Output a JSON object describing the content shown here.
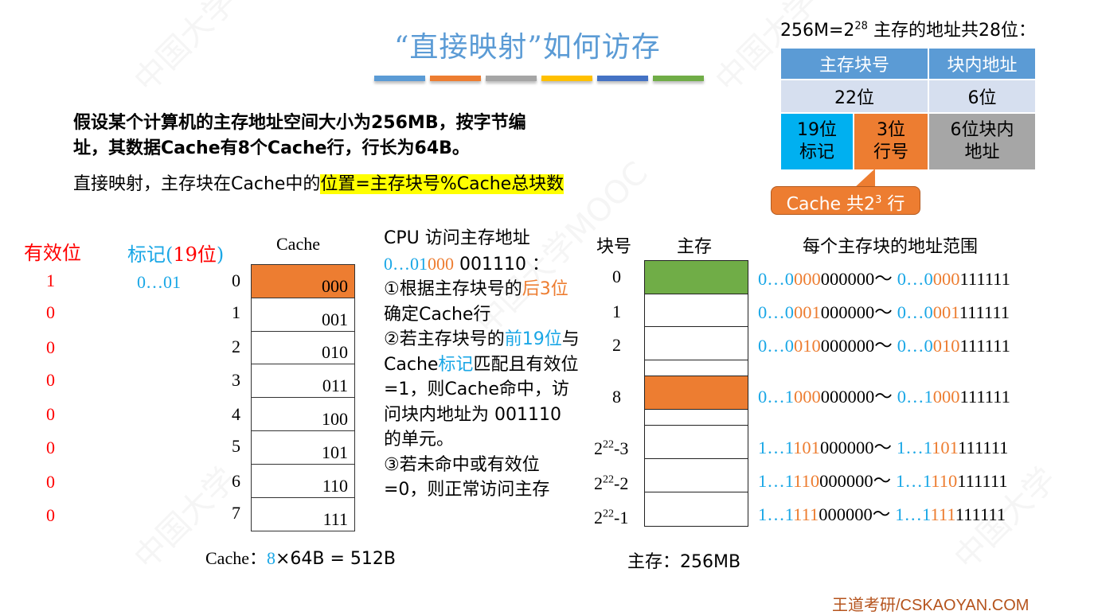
{
  "title": "“直接映射”如何访存",
  "title_bars": [
    "#5b9bd5",
    "#ed7d31",
    "#a5a5a5",
    "#ffc000",
    "#4472c4",
    "#70ad47"
  ],
  "intro": {
    "line1_pre": "假设某个计算机的主存地址空间大小为256MB，按",
    "line1_bold": "字节",
    "line1_post": "编",
    "line2": "址，其数据Cache有8个Cache行，行长为64B。"
  },
  "rule": {
    "prefix": "直接映射，主存块在Cache中的",
    "highlight": "位置=主存块号%Cache总块数"
  },
  "address": {
    "caption_pre": "256M=2",
    "caption_exp": "28",
    "caption_post": " 主存的地址共28位：",
    "header": [
      "主存块号",
      "块内地址"
    ],
    "bits": [
      "22位",
      "6位"
    ],
    "tag": [
      "19位",
      "标记"
    ],
    "row": [
      "3位",
      "行号"
    ],
    "offset": [
      "6位块内",
      "地址"
    ],
    "callout_pre": "Cache 共2",
    "callout_exp": "3",
    "callout_post": " 行"
  },
  "cache": {
    "valid_header": "有效位",
    "tag_header_a": "标记(",
    "tag_header_b": "19位",
    "tag_header_c": ")",
    "header": "Cache",
    "valid_bits": [
      "1",
      "0",
      "0",
      "0",
      "0",
      "0",
      "0",
      "0"
    ],
    "tag_values": [
      "0…01"
    ],
    "indices": [
      "0",
      "1",
      "2",
      "3",
      "4",
      "5",
      "6",
      "7"
    ],
    "lines": [
      "000",
      "001",
      "010",
      "011",
      "100",
      "101",
      "110",
      "111"
    ],
    "size_label": "Cache：",
    "size_count": "8",
    "size_rest": "×64B = 512B",
    "highlight_color": "#ed7d31"
  },
  "cpu": {
    "l1": "CPU 访问主存地址",
    "addr_tag": "0…01",
    "addr_row": "000",
    "addr_off": " 001110 ：",
    "s1_a": "①根据主存块号的",
    "s1_b": "后3位",
    "s1_c": "确定Cache行",
    "s2_a": "②若主存块号的",
    "s2_b": "前19位",
    "s2_c": "与Cache",
    "s2_d": "标记",
    "s2_e": "匹配且有效位=1，则Cache命中，访问块内地址为 001110 的单元。",
    "s3": "③若未命中或有效位=0，则正常访问主存"
  },
  "memory": {
    "blockno_header": "块号",
    "header": "主存",
    "blocks": [
      {
        "label": "0",
        "color": "#70ad47"
      },
      {
        "label": "1",
        "color": "#ffffff"
      },
      {
        "label": "2",
        "color": "#ffffff"
      },
      {
        "label": "",
        "color": "#ffffff"
      },
      {
        "label": "8",
        "color": "#ed7d31"
      },
      {
        "label": "",
        "color": "#ffffff"
      },
      {
        "label": "2^22-3",
        "color": "#ffffff"
      },
      {
        "label": "2^22-2",
        "color": "#ffffff"
      },
      {
        "label": "2^22-1",
        "color": "#ffffff"
      }
    ],
    "size_label": "主存：256MB"
  },
  "ranges": {
    "header": "每个主存块的地址范围",
    "rows": [
      {
        "tag": "0…0",
        "row": "000",
        "from_off": "000000",
        "to_tag": "0…0",
        "to_row": "000",
        "to_off": "111111"
      },
      {
        "tag": "0…0",
        "row": "001",
        "from_off": "000000",
        "to_tag": "0…0",
        "to_row": "001",
        "to_off": "111111"
      },
      {
        "tag": "0…0",
        "row": "010",
        "from_off": "000000",
        "to_tag": "0…0",
        "to_row": "010",
        "to_off": "111111"
      },
      {
        "tag": "0…1",
        "row": "000",
        "from_off": "000000",
        "to_tag": "0…1",
        "to_row": "000",
        "to_off": "111111"
      },
      {
        "tag": "1…1",
        "row": "101",
        "from_off": "000000",
        "to_tag": "1…1",
        "to_row": "101",
        "to_off": "111111"
      },
      {
        "tag": "1…1",
        "row": "110",
        "from_off": "000000",
        "to_tag": "1…1",
        "to_row": "110",
        "to_off": "111111"
      },
      {
        "tag": "1…1",
        "row": "111",
        "from_off": "000000",
        "to_tag": "1…1",
        "to_row": "111",
        "to_off": "111111"
      }
    ],
    "tilde": "～"
  },
  "footer": "王道考研/CSKAOYAN.COM"
}
